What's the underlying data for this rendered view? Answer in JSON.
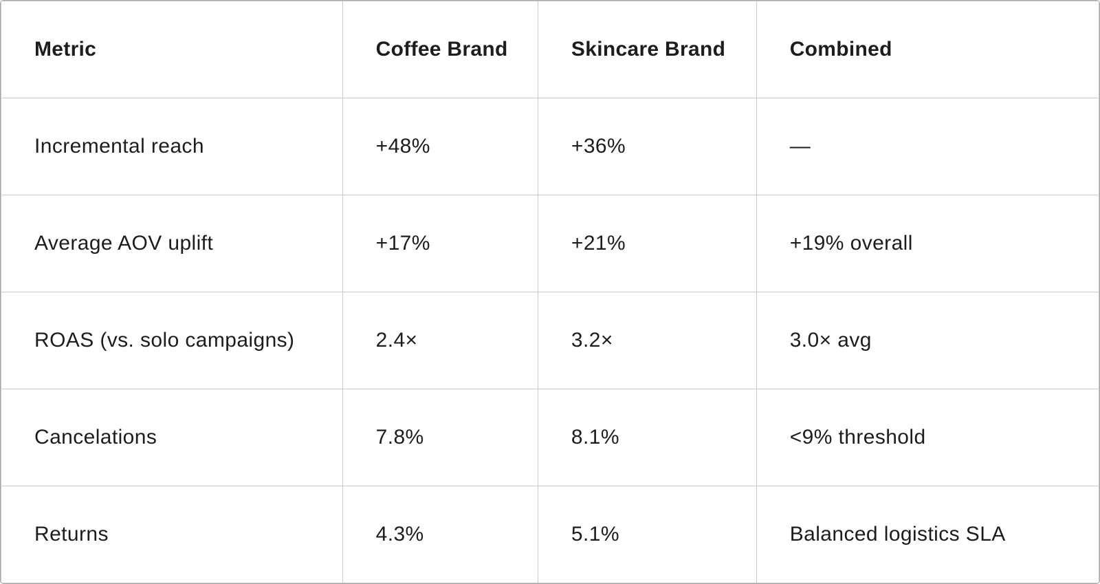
{
  "table": {
    "headers": [
      "Metric",
      "Coffee Brand",
      "Skincare Brand",
      "Combined"
    ],
    "rows": [
      [
        "Incremental reach",
        "+48%",
        "+36%",
        "—"
      ],
      [
        "Average AOV uplift",
        "+17%",
        "+21%",
        "+19% overall"
      ],
      [
        "ROAS (vs. solo campaigns)",
        "2.4×",
        "3.2×",
        "3.0× avg"
      ],
      [
        "Cancelations",
        "7.8%",
        "8.1%",
        "<9% threshold"
      ],
      [
        "Returns",
        "4.3%",
        "5.1%",
        "Balanced logistics SLA"
      ]
    ]
  },
  "colors": {
    "text": "#1d1d1d",
    "grid_line": "#c9c9c9",
    "outer_border": "#a6a6a6",
    "background": "#ffffff"
  },
  "chart_data": {
    "type": "table",
    "title": "",
    "columns": [
      "Metric",
      "Coffee Brand",
      "Skincare Brand",
      "Combined"
    ],
    "rows": [
      [
        "Incremental reach",
        "+48%",
        "+36%",
        "—"
      ],
      [
        "Average AOV uplift",
        "+17%",
        "+21%",
        "+19% overall"
      ],
      [
        "ROAS (vs. solo campaigns)",
        "2.4×",
        "3.2×",
        "3.0× avg"
      ],
      [
        "Cancelations",
        "7.8%",
        "8.1%",
        "<9% threshold"
      ],
      [
        "Returns",
        "4.3%",
        "5.1%",
        "Balanced logistics SLA"
      ]
    ]
  }
}
